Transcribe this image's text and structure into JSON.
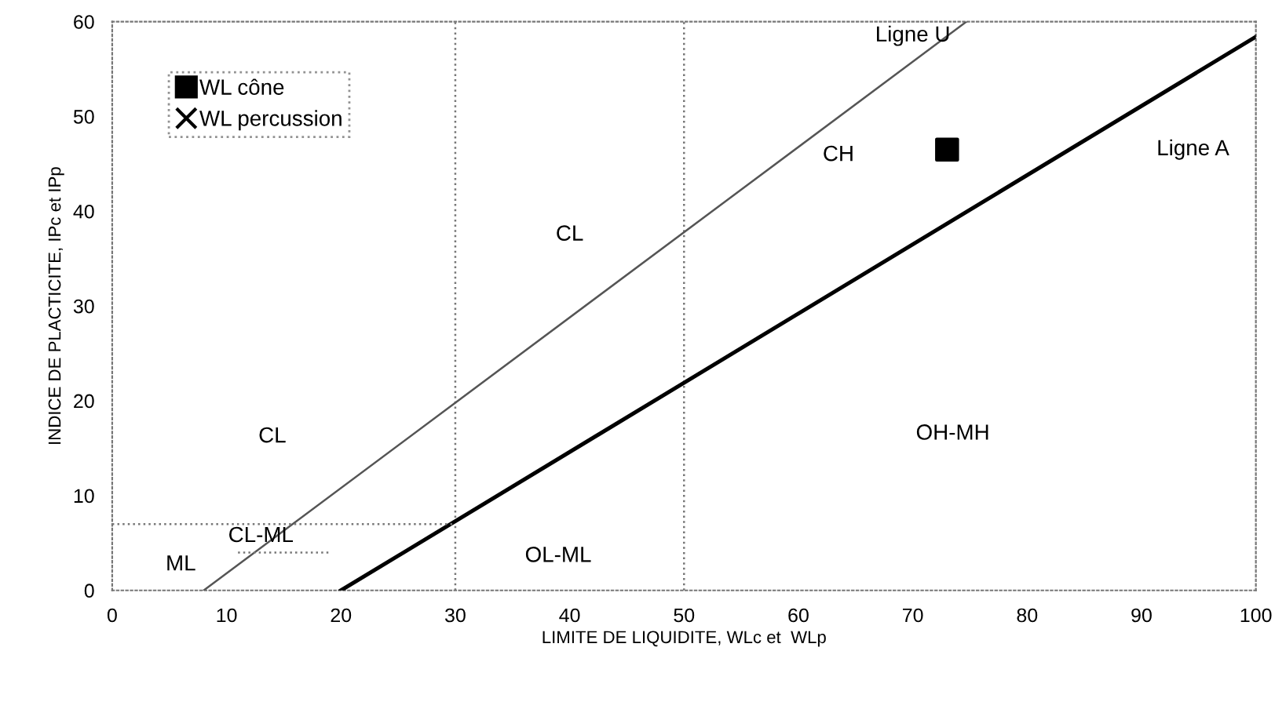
{
  "chart_data": {
    "type": "scatter",
    "xlabel": "LIMITE DE LIQUIDITE, WLc et  WLp",
    "ylabel": "INDICE DE PLACTICITE, IPc et IPp",
    "xlim": [
      0,
      100
    ],
    "ylim": [
      0,
      60
    ],
    "xticks": [
      0,
      10,
      20,
      30,
      40,
      50,
      60,
      70,
      80,
      90,
      100
    ],
    "yticks": [
      0,
      10,
      20,
      30,
      40,
      50,
      60
    ],
    "grid": false,
    "legend": "top left",
    "series": [
      {
        "name": "WL cône",
        "marker": "square",
        "color": "#000000",
        "x": [
          73
        ],
        "values": [
          46.5
        ]
      },
      {
        "name": "WL percussion",
        "marker": "cross",
        "color": "#000000",
        "values": [
          null
        ]
      },
      {
        "type": "line",
        "color": "#555555",
        "line_style": "solid",
        "x": [
          8,
          74.7
        ],
        "values": [
          0,
          60
        ]
      },
      {
        "type": "line",
        "color": "#000000",
        "line_style": "solid",
        "x": [
          20,
          100
        ],
        "values": [
          0,
          58.4
        ]
      },
      {
        "type": "line",
        "color": "#777777",
        "line_style": "dotted",
        "x": [
          0,
          30
        ],
        "values": [
          7,
          7
        ]
      },
      {
        "type": "line",
        "color": "#777777",
        "line_style": "dotted",
        "x": [
          11,
          19
        ],
        "values": [
          4,
          4
        ]
      }
    ],
    "ref_lines": [
      {
        "axis": "x",
        "value": 30,
        "color": "#777777",
        "line_style": "dotted"
      },
      {
        "axis": "x",
        "value": 50,
        "color": "#777777",
        "line_style": "dotted"
      }
    ],
    "annotations": [
      "Ligne U",
      "Ligne A",
      "CH",
      "CL",
      "CL",
      "OH-MH",
      "CL-ML",
      "ML",
      "OL-ML"
    ]
  }
}
